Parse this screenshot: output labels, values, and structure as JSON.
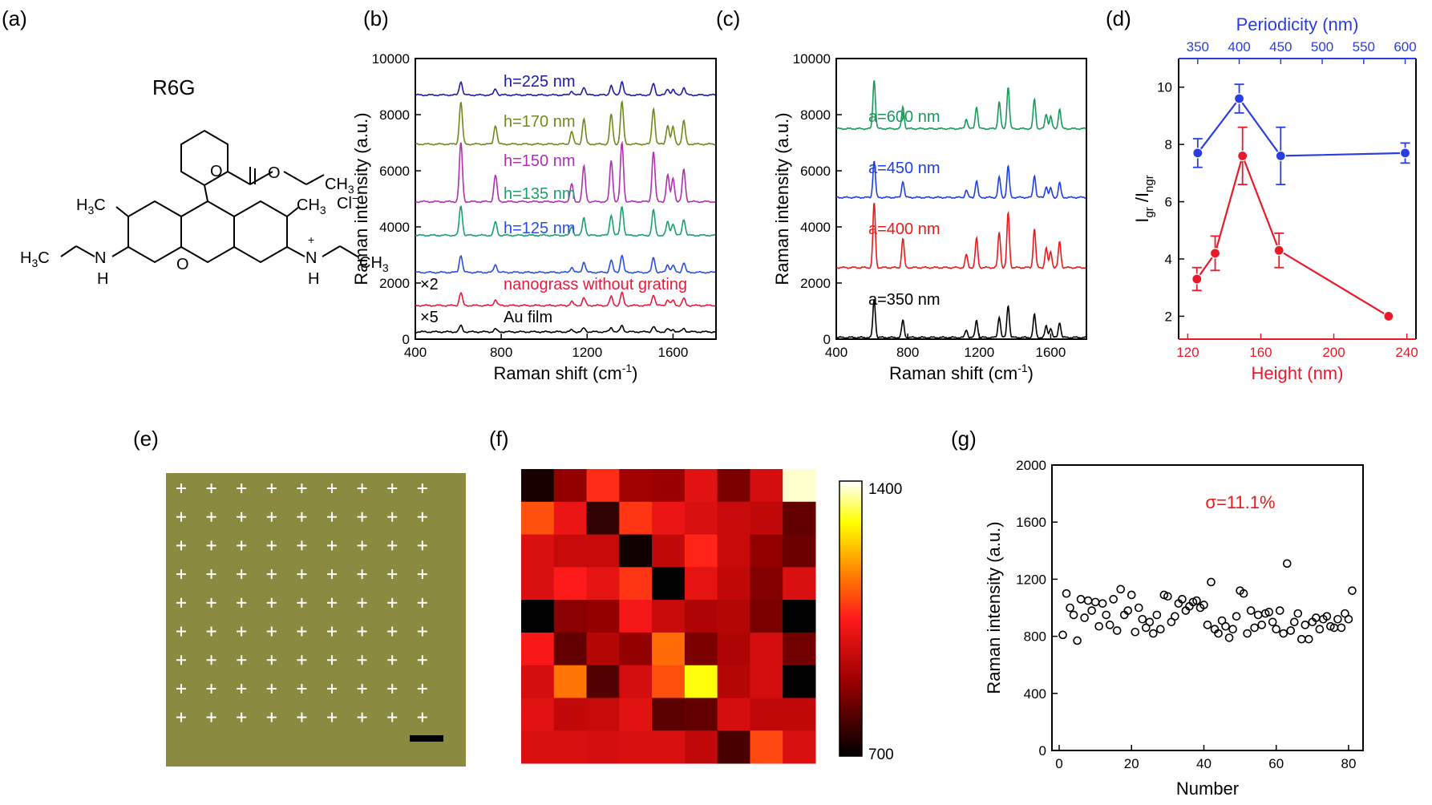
{
  "panel_labels": [
    "(a)",
    "(b)",
    "(c)",
    "(d)",
    "(e)",
    "(f)",
    "(g)"
  ],
  "molecule": {
    "name": "R6G",
    "labels": {
      "ch3": "CH",
      "h3c": "H",
      "n": "N",
      "h": "H",
      "o": "O",
      "cl": "Cl",
      "plus": "+",
      "minus": "−",
      "sub3": "3",
      "c": "C"
    }
  },
  "colors": {
    "h225": "#1c1ca8",
    "h170": "#6c8a1a",
    "h150": "#b12fb1",
    "h135": "#1aa06a",
    "h125": "#2a4ee0",
    "nanograss": "#e8193c",
    "au": "#000000",
    "a600": "#1a9a5a",
    "a450": "#1e3ee6",
    "a400": "#e81a1a",
    "a350": "#000000",
    "blue": "#2a3ee0",
    "red": "#e81a2a",
    "optical_bg": "#8a8a40",
    "grid_cross": "#ffffff",
    "scalebar": "#000000",
    "sigma": "#e81a1a"
  },
  "chart_data": [
    {
      "id": "b",
      "type": "line",
      "xlabel": "Raman shift (cm",
      "xlabel_sup": "-1",
      "xlabel_end": ")",
      "ylabel": "Raman intensity (a.u.)",
      "xlim": [
        400,
        1800
      ],
      "ylim": [
        0,
        10000
      ],
      "xticks": [
        400,
        800,
        1200,
        1600
      ],
      "yticks": [
        0,
        2000,
        4000,
        6000,
        8000,
        10000
      ],
      "peaks": [
        [
          612,
          1.0
        ],
        [
          773,
          0.45
        ],
        [
          1128,
          0.3
        ],
        [
          1185,
          0.6
        ],
        [
          1312,
          0.7
        ],
        [
          1362,
          1.0
        ],
        [
          1509,
          0.85
        ],
        [
          1575,
          0.45
        ],
        [
          1600,
          0.4
        ],
        [
          1650,
          0.55
        ]
      ],
      "series": [
        {
          "name": "h=225 nm",
          "color_key": "h225",
          "baseline": 8700,
          "scale": 480
        },
        {
          "name": "h=170 nm",
          "color_key": "h170",
          "baseline": 6950,
          "scale": 1500
        },
        {
          "name": "h=150 nm",
          "color_key": "h150",
          "baseline": 4900,
          "scale": 2100
        },
        {
          "name": "h=135 nm",
          "color_key": "h135",
          "baseline": 3700,
          "scale": 1050
        },
        {
          "name": "h=125 nm",
          "color_key": "h125",
          "baseline": 2380,
          "scale": 620
        },
        {
          "name": "nanograss without grating",
          "prefix": "×2",
          "color_key": "nanograss",
          "baseline": 1200,
          "scale": 450
        },
        {
          "name": "Au film",
          "prefix": "×5",
          "color_key": "au",
          "baseline": 260,
          "scale": 220
        }
      ]
    },
    {
      "id": "c",
      "type": "line",
      "xlabel": "Raman shift (cm",
      "xlabel_sup": "-1",
      "xlabel_end": ")",
      "ylabel": "Raman intensity (a.u.)",
      "xlim": [
        400,
        1800
      ],
      "ylim": [
        0,
        10000
      ],
      "xticks": [
        400,
        800,
        1200,
        1600
      ],
      "yticks": [
        0,
        2000,
        4000,
        6000,
        8000,
        10000
      ],
      "peaks": [
        [
          612,
          1.0
        ],
        [
          773,
          0.45
        ],
        [
          1128,
          0.2
        ],
        [
          1185,
          0.45
        ],
        [
          1312,
          0.55
        ],
        [
          1362,
          0.85
        ],
        [
          1509,
          0.6
        ],
        [
          1575,
          0.3
        ],
        [
          1600,
          0.25
        ],
        [
          1650,
          0.4
        ]
      ],
      "series": [
        {
          "name": "a=600 nm",
          "color_key": "a600",
          "baseline": 7500,
          "scale": 1750
        },
        {
          "name": "a=450 nm",
          "color_key": "a450",
          "baseline": 5050,
          "scale": 1300
        },
        {
          "name": "a=400 nm",
          "color_key": "a400",
          "baseline": 2550,
          "scale": 2300
        },
        {
          "name": "a=350 nm",
          "color_key": "a350",
          "baseline": 60,
          "scale": 1350
        }
      ]
    },
    {
      "id": "d",
      "type": "line",
      "xlabel": "Height (nm)",
      "x2label": "Periodicity (nm)",
      "ylabel": "I",
      "ylabel_sub1": "gr",
      "ylabel_mid": " /I",
      "ylabel_sub2": "ngr",
      "xlim": [
        115,
        245
      ],
      "x2lim": [
        327,
        613
      ],
      "ylim": [
        1.2,
        11
      ],
      "xticks": [
        120,
        160,
        200,
        240
      ],
      "x2ticks": [
        350,
        400,
        450,
        500,
        550,
        600
      ],
      "yticks": [
        2,
        4,
        6,
        8,
        10
      ],
      "series": [
        {
          "name": "Height",
          "color_key": "red",
          "axis": "bottom",
          "x": [
            125,
            135,
            150,
            170,
            230
          ],
          "y": [
            3.3,
            4.2,
            7.6,
            4.3,
            2.0
          ],
          "err": [
            0.4,
            0.6,
            1.0,
            0.6,
            0
          ]
        },
        {
          "name": "Periodicity",
          "color_key": "blue",
          "axis": "top",
          "x": [
            350,
            400,
            450,
            600
          ],
          "y": [
            7.7,
            9.6,
            7.6,
            7.7
          ],
          "err": [
            0.5,
            0.5,
            1.0,
            0.35
          ]
        }
      ]
    },
    {
      "id": "f",
      "type": "heatmap",
      "colorbar_ticks": [
        1400,
        700
      ],
      "clim": [
        700,
        1400
      ],
      "rows": [
        [
          730,
          880,
          1070,
          900,
          890,
          1000,
          850,
          980,
          1380
        ],
        [
          1110,
          1020,
          760,
          1080,
          1020,
          990,
          960,
          950,
          820
        ],
        [
          990,
          960,
          960,
          720,
          950,
          1060,
          960,
          880,
          830
        ],
        [
          990,
          1050,
          1010,
          1080,
          700,
          1010,
          950,
          860,
          990
        ],
        [
          700,
          870,
          880,
          1030,
          960,
          920,
          930,
          850,
          700
        ],
        [
          1040,
          820,
          930,
          880,
          1140,
          850,
          920,
          980,
          840
        ],
        [
          980,
          1150,
          800,
          980,
          1110,
          1300,
          930,
          980,
          700
        ],
        [
          1000,
          950,
          960,
          1000,
          810,
          820,
          980,
          950,
          950
        ],
        [
          990,
          990,
          980,
          990,
          990,
          950,
          790,
          1100,
          990
        ]
      ]
    },
    {
      "id": "g",
      "type": "scatter",
      "xlabel": "Number",
      "ylabel": "Raman intensity (a.u.)",
      "xlim": [
        -2,
        84
      ],
      "ylim": [
        0,
        2000
      ],
      "xticks": [
        0,
        20,
        40,
        60,
        80
      ],
      "yticks": [
        0,
        400,
        800,
        1200,
        1600,
        2000
      ],
      "annotation": "σ=11.1%",
      "x": [
        1,
        2,
        3,
        4,
        5,
        6,
        7,
        8,
        9,
        10,
        11,
        12,
        13,
        14,
        15,
        16,
        17,
        18,
        19,
        20,
        21,
        22,
        23,
        24,
        25,
        26,
        27,
        28,
        29,
        30,
        31,
        32,
        33,
        34,
        35,
        36,
        37,
        38,
        39,
        40,
        41,
        42,
        43,
        44,
        45,
        46,
        47,
        48,
        49,
        50,
        51,
        52,
        53,
        54,
        55,
        56,
        57,
        58,
        59,
        60,
        61,
        62,
        63,
        64,
        65,
        66,
        67,
        68,
        69,
        70,
        71,
        72,
        73,
        74,
        75,
        76,
        77,
        78,
        79,
        80,
        81
      ],
      "y": [
        810,
        1100,
        1000,
        950,
        770,
        1060,
        930,
        1050,
        980,
        1040,
        870,
        1030,
        950,
        880,
        1060,
        840,
        1130,
        950,
        980,
        1090,
        830,
        1000,
        920,
        860,
        900,
        820,
        950,
        850,
        1090,
        1080,
        900,
        940,
        1030,
        1060,
        980,
        1010,
        1040,
        1050,
        1000,
        1020,
        880,
        1180,
        850,
        820,
        910,
        870,
        790,
        850,
        940,
        1120,
        1100,
        820,
        980,
        860,
        950,
        880,
        960,
        970,
        900,
        850,
        980,
        820,
        1310,
        840,
        900,
        960,
        780,
        880,
        780,
        900,
        930,
        850,
        920,
        940,
        870,
        860,
        920,
        860,
        960,
        920,
        1120
      ]
    }
  ]
}
